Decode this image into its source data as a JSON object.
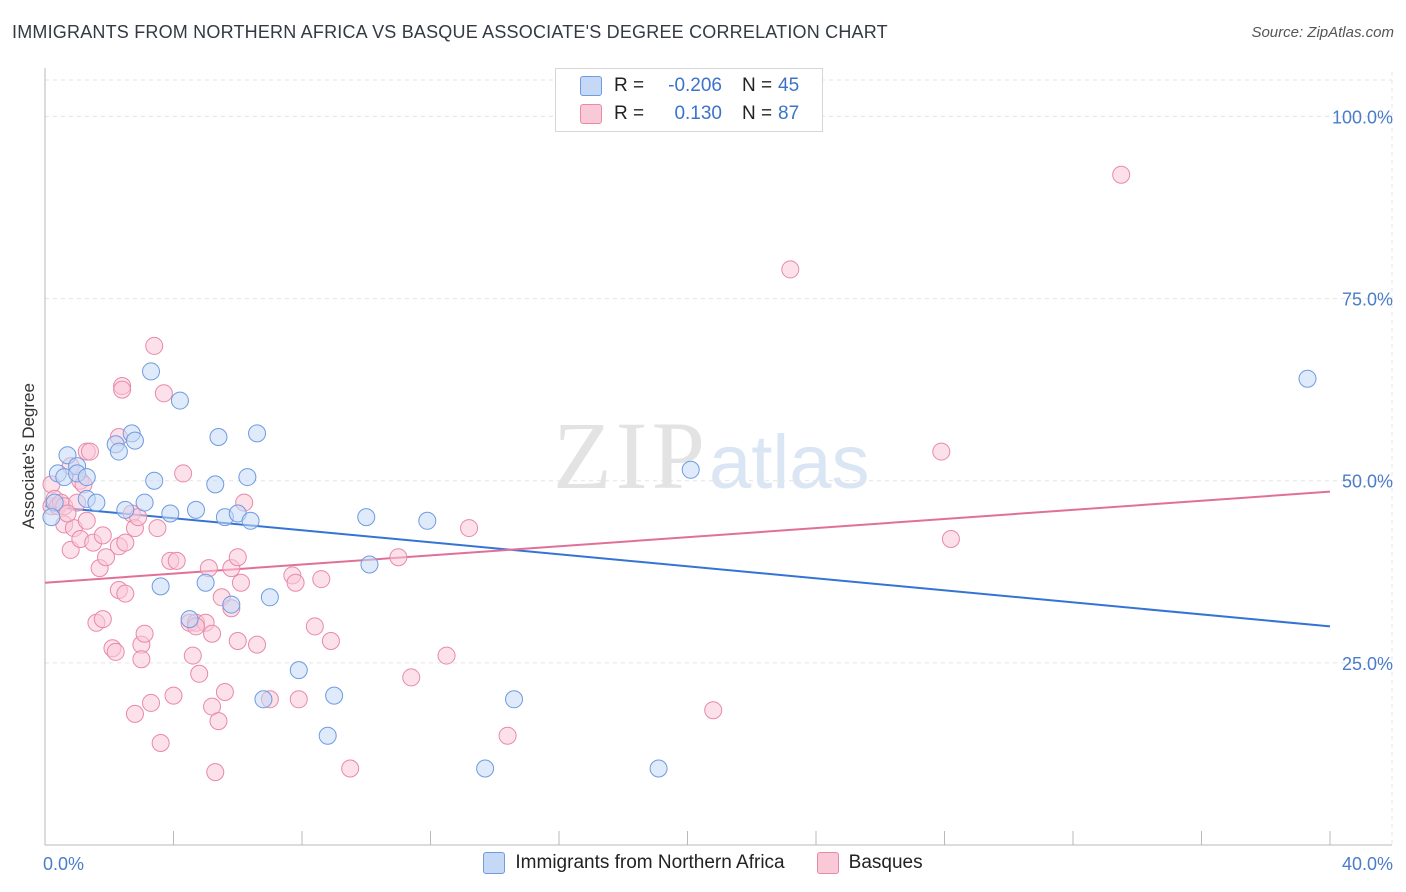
{
  "header": {
    "title": "IMMIGRANTS FROM NORTHERN AFRICA VS BASQUE ASSOCIATE'S DEGREE CORRELATION CHART",
    "source": "Source: ZipAtlas.com"
  },
  "watermark": {
    "zip": "ZIP",
    "atlas": "atlas"
  },
  "legend": {
    "rows": [
      {
        "r_label": "R =",
        "r_value": "-0.206",
        "n_label": "N =",
        "n_value": "45"
      },
      {
        "r_label": "R =",
        "r_value": "0.130",
        "n_label": "N =",
        "n_value": "87"
      }
    ]
  },
  "bottom_legend": {
    "series1": "Immigrants from Northern Africa",
    "series2": "Basques"
  },
  "colors": {
    "blue_fill": "#c5d8f5",
    "blue_stroke": "#6f9be0",
    "blue_line": "#3574d4",
    "pink_fill": "#f9c9d8",
    "pink_stroke": "#e989a8",
    "pink_line": "#e0709a"
  },
  "chart_data": {
    "type": "scatter",
    "title": "IMMIGRANTS FROM NORTHERN AFRICA VS BASQUE ASSOCIATE'S DEGREE CORRELATION CHART",
    "xlabel": "",
    "ylabel": "Associate's Degree",
    "xlim": [
      0,
      40
    ],
    "ylim": [
      0,
      105
    ],
    "x_tick_labels": [
      "0.0%",
      "40.0%"
    ],
    "y_ticks": [
      25,
      50,
      75,
      100
    ],
    "y_tick_labels": [
      "25.0%",
      "50.0%",
      "75.0%",
      "100.0%"
    ],
    "grid": true,
    "series": [
      {
        "name": "Immigrants from Northern Africa",
        "r": -0.206,
        "n": 45,
        "trend": {
          "x": [
            0,
            40
          ],
          "y": [
            46.5,
            30.0
          ]
        },
        "points": [
          [
            0.3,
            47
          ],
          [
            0.4,
            51
          ],
          [
            0.6,
            50.5
          ],
          [
            0.7,
            53.5
          ],
          [
            1.0,
            52
          ],
          [
            1.0,
            51
          ],
          [
            1.3,
            47.5
          ],
          [
            1.3,
            50.5
          ],
          [
            1.6,
            47
          ],
          [
            2.2,
            55
          ],
          [
            2.3,
            54
          ],
          [
            2.5,
            46
          ],
          [
            2.7,
            56.5
          ],
          [
            2.8,
            55.5
          ],
          [
            3.1,
            47
          ],
          [
            3.3,
            65
          ],
          [
            3.4,
            50
          ],
          [
            3.6,
            35.5
          ],
          [
            3.9,
            45.5
          ],
          [
            4.2,
            61
          ],
          [
            4.5,
            31
          ],
          [
            4.7,
            46
          ],
          [
            5.0,
            36
          ],
          [
            5.3,
            49.5
          ],
          [
            5.4,
            56
          ],
          [
            5.6,
            45
          ],
          [
            5.8,
            33
          ],
          [
            6.0,
            45.5
          ],
          [
            6.3,
            50.5
          ],
          [
            6.4,
            44.5
          ],
          [
            6.6,
            56.5
          ],
          [
            6.8,
            20
          ],
          [
            7.0,
            34
          ],
          [
            7.9,
            24
          ],
          [
            8.8,
            15
          ],
          [
            9.0,
            20.5
          ],
          [
            10.0,
            45
          ],
          [
            10.1,
            38.5
          ],
          [
            11.9,
            44.5
          ],
          [
            13.7,
            10.5
          ],
          [
            14.6,
            20
          ],
          [
            19.1,
            10.5
          ],
          [
            20.1,
            51.5
          ],
          [
            39.3,
            64
          ],
          [
            0.2,
            45
          ]
        ]
      },
      {
        "name": "Basques",
        "r": 0.13,
        "n": 87,
        "trend": {
          "x": [
            0,
            40
          ],
          "y": [
            36.0,
            48.5
          ]
        },
        "points": [
          [
            0.2,
            46.5
          ],
          [
            0.2,
            49.5
          ],
          [
            0.3,
            47.5
          ],
          [
            0.4,
            46.5
          ],
          [
            0.5,
            47
          ],
          [
            0.6,
            46.5
          ],
          [
            0.6,
            44
          ],
          [
            0.8,
            52
          ],
          [
            0.8,
            40.5
          ],
          [
            0.9,
            43.5
          ],
          [
            1.0,
            47
          ],
          [
            1.1,
            50
          ],
          [
            1.1,
            42
          ],
          [
            1.2,
            49.5
          ],
          [
            1.3,
            44.5
          ],
          [
            1.3,
            54
          ],
          [
            1.5,
            41.5
          ],
          [
            1.6,
            30.5
          ],
          [
            1.7,
            38
          ],
          [
            1.8,
            31
          ],
          [
            1.8,
            42.5
          ],
          [
            1.9,
            39.5
          ],
          [
            2.1,
            27
          ],
          [
            2.2,
            26.5
          ],
          [
            2.3,
            41
          ],
          [
            2.3,
            35
          ],
          [
            2.3,
            56
          ],
          [
            2.4,
            63
          ],
          [
            2.4,
            62.5
          ],
          [
            2.5,
            34.5
          ],
          [
            2.5,
            41.5
          ],
          [
            2.7,
            45.5
          ],
          [
            2.8,
            43.5
          ],
          [
            2.8,
            18
          ],
          [
            3.0,
            27.5
          ],
          [
            3.0,
            25.5
          ],
          [
            3.1,
            29
          ],
          [
            3.3,
            19.5
          ],
          [
            3.4,
            68.5
          ],
          [
            3.5,
            43.5
          ],
          [
            3.6,
            14
          ],
          [
            3.7,
            62
          ],
          [
            3.9,
            39
          ],
          [
            4.0,
            20.5
          ],
          [
            4.1,
            39
          ],
          [
            4.3,
            51
          ],
          [
            4.5,
            30.5
          ],
          [
            4.6,
            26
          ],
          [
            4.7,
            30.5
          ],
          [
            4.8,
            23.5
          ],
          [
            5.0,
            30.5
          ],
          [
            5.1,
            38
          ],
          [
            5.2,
            19
          ],
          [
            5.2,
            29
          ],
          [
            5.3,
            10
          ],
          [
            5.4,
            17
          ],
          [
            5.5,
            34
          ],
          [
            5.6,
            21
          ],
          [
            5.8,
            38
          ],
          [
            5.8,
            32.5
          ],
          [
            6.0,
            28
          ],
          [
            6.0,
            39.5
          ],
          [
            6.2,
            47
          ],
          [
            6.6,
            27.5
          ],
          [
            7.0,
            20
          ],
          [
            7.7,
            37
          ],
          [
            7.8,
            36
          ],
          [
            7.9,
            20
          ],
          [
            8.4,
            30
          ],
          [
            8.6,
            36.5
          ],
          [
            8.9,
            28
          ],
          [
            9.5,
            10.5
          ],
          [
            11.0,
            39.5
          ],
          [
            11.4,
            23
          ],
          [
            12.5,
            26
          ],
          [
            13.2,
            43.5
          ],
          [
            14.4,
            15
          ],
          [
            20.8,
            18.5
          ],
          [
            23.2,
            79
          ],
          [
            28.2,
            42
          ],
          [
            27.9,
            54
          ],
          [
            33.5,
            92
          ],
          [
            1.4,
            54
          ],
          [
            2.9,
            45
          ],
          [
            4.7,
            30
          ],
          [
            6.1,
            36
          ],
          [
            0.7,
            45.5
          ]
        ]
      }
    ]
  }
}
